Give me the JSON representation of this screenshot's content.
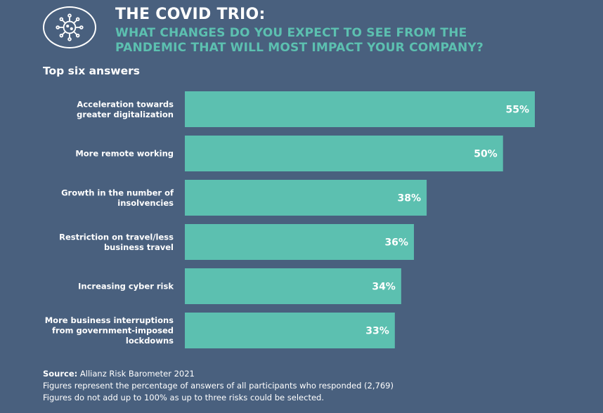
{
  "header": {
    "title": "THE COVID TRIO:",
    "subtitle_line1": "WHAT CHANGES DO YOU EXPECT TO SEE FROM THE",
    "subtitle_line2": "PANDEMIC THAT WILL MOST IMPACT YOUR COMPANY?",
    "icon": "virus-icon"
  },
  "section_label": "Top six answers",
  "colors": {
    "background": "#49607e",
    "bar": "#5cc0b0",
    "accent_text": "#5cc0b0",
    "text": "#ffffff"
  },
  "chart_data": {
    "type": "bar",
    "orientation": "horizontal",
    "categories": [
      [
        "Acceleration towards",
        "greater digitalization"
      ],
      [
        "More remote working"
      ],
      [
        "Growth in the number of",
        "insolvencies"
      ],
      [
        "Restriction on travel/less",
        "business travel"
      ],
      [
        "Increasing cyber risk"
      ],
      [
        "More business interruptions",
        "from government-imposed",
        "lockdowns"
      ]
    ],
    "values": [
      55,
      50,
      38,
      36,
      34,
      33
    ],
    "value_labels": [
      "55%",
      "50%",
      "38%",
      "36%",
      "34%",
      "33%"
    ],
    "unit": "%",
    "xlim": [
      0,
      55
    ]
  },
  "footer": {
    "source_key": "Source:",
    "source_value": " Allianz Risk Barometer 2021",
    "note1": "Figures represent the percentage of answers of all participants who responded (2,769)",
    "note2": "Figures do not add up to 100% as up to three risks could be selected."
  }
}
